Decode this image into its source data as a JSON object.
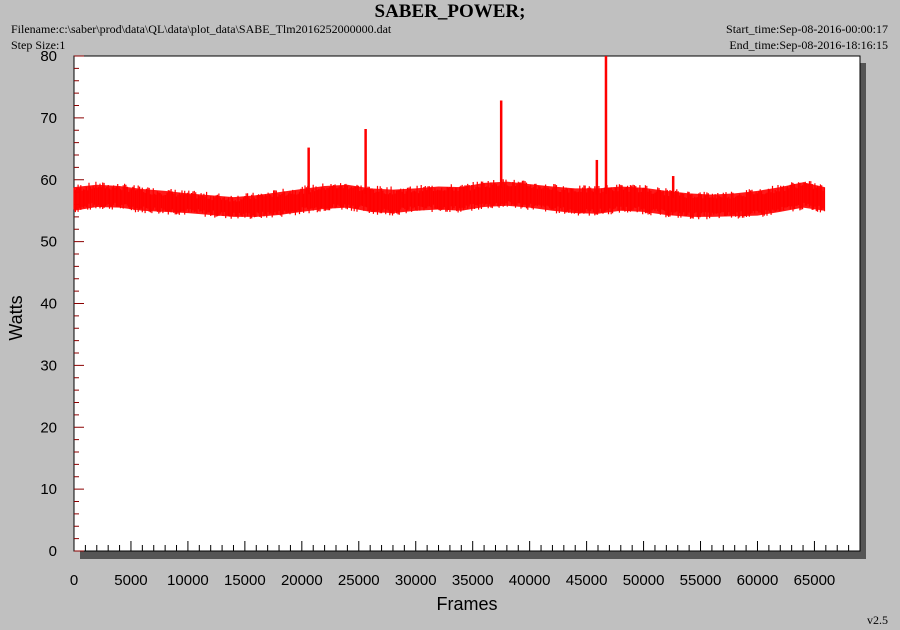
{
  "header": {
    "title": "SABER_POWER;",
    "filename": "Filename:c:\\saber\\prod\\data\\QL\\data\\plot_data\\SABE_Tlm2016252000000.dat",
    "step_size": "Step Size:1",
    "start_time": "Start_time:Sep-08-2016-00:00:17",
    "end_time": "End_time:Sep-08-2016-18:16:15"
  },
  "footer": {
    "version": "v2.5"
  },
  "colors": {
    "series": "#ff0000",
    "axis_ticks": "#8b0000",
    "background": "#c0c0c0",
    "plot_bg": "#ffffff"
  },
  "chart_data": {
    "type": "line",
    "xlabel": "Frames",
    "ylabel": "Watts",
    "xlim": [
      0,
      69000
    ],
    "ylim": [
      0,
      80
    ],
    "x_ticks": [
      0,
      5000,
      10000,
      15000,
      20000,
      25000,
      30000,
      35000,
      40000,
      45000,
      50000,
      55000,
      60000,
      65000
    ],
    "y_ticks": [
      0,
      10,
      20,
      30,
      40,
      50,
      60,
      70,
      80
    ],
    "grid": false,
    "series": [
      {
        "name": "",
        "band": {
          "x": [
            0,
            2000,
            4000,
            6000,
            8000,
            10000,
            12000,
            14000,
            16000,
            18000,
            20000,
            22000,
            24000,
            26000,
            28000,
            30000,
            32000,
            34000,
            36000,
            38000,
            40000,
            42000,
            44000,
            46000,
            48000,
            50000,
            52000,
            54000,
            56000,
            58000,
            60000,
            62000,
            64000,
            65900
          ],
          "low": [
            55.0,
            55.6,
            55.5,
            55.0,
            54.8,
            54.6,
            54.3,
            54.0,
            54.0,
            54.3,
            54.8,
            55.3,
            55.5,
            54.8,
            54.6,
            55.0,
            55.2,
            55.0,
            55.6,
            55.8,
            55.5,
            55.0,
            54.6,
            54.5,
            55.0,
            54.8,
            54.3,
            54.0,
            54.0,
            54.1,
            54.2,
            54.8,
            55.5,
            55.0
          ],
          "high": [
            58.8,
            59.2,
            59.0,
            58.5,
            58.2,
            57.8,
            57.5,
            57.2,
            57.5,
            58.0,
            58.5,
            59.0,
            59.2,
            58.6,
            58.4,
            58.6,
            58.9,
            58.8,
            59.5,
            59.7,
            59.3,
            58.9,
            58.6,
            58.6,
            58.9,
            58.7,
            58.2,
            57.8,
            57.6,
            57.8,
            58.2,
            58.8,
            59.6,
            58.8
          ]
        },
        "spikes": [
          {
            "x": 20600,
            "y": 65.2
          },
          {
            "x": 25600,
            "y": 68.2
          },
          {
            "x": 37500,
            "y": 72.8
          },
          {
            "x": 45900,
            "y": 63.2
          },
          {
            "x": 46700,
            "y": 80.0
          },
          {
            "x": 52600,
            "y": 60.6
          }
        ]
      }
    ]
  }
}
